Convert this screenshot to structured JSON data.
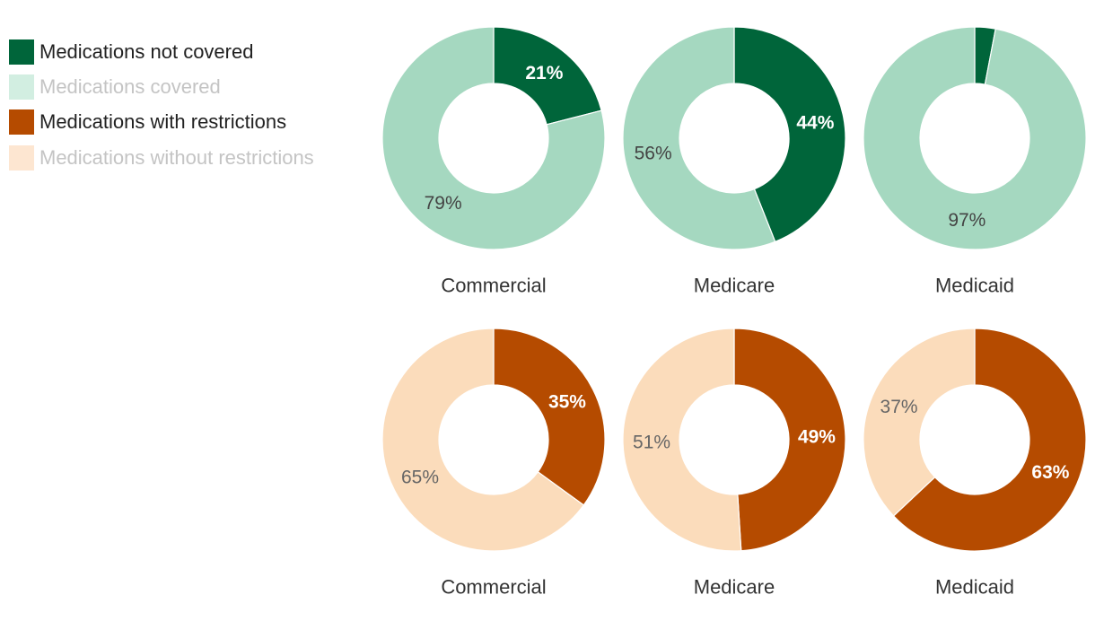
{
  "legend": {
    "items": [
      {
        "label": "Medications not covered",
        "color": "#00653a",
        "text_color": "#222222"
      },
      {
        "label": "Medications covered",
        "color": "#d2eee1",
        "text_color": "#c4c4c4"
      },
      {
        "label": "Medications with restrictions",
        "color": "#b54b00",
        "text_color": "#222222"
      },
      {
        "label": "Medications without restrictions",
        "color": "#fde6d1",
        "text_color": "#c4c4c4"
      }
    ]
  },
  "chart_data": [
    {
      "type": "pie",
      "subtype": "donut",
      "row": 0,
      "categories": [
        "Medications not covered",
        "Medications covered"
      ],
      "colors": [
        "#00653a",
        "#a5d8c0"
      ],
      "label_colors": [
        "#ffffff",
        "#444444"
      ],
      "label_bold": [
        true,
        false
      ],
      "charts": [
        {
          "title": "Commercial",
          "values": [
            21,
            79
          ],
          "labels": [
            "21%",
            "79%"
          ]
        },
        {
          "title": "Medicare",
          "values": [
            44,
            56
          ],
          "labels": [
            "44%",
            "56%"
          ]
        },
        {
          "title": "Medicaid",
          "values": [
            3,
            97
          ],
          "labels": [
            "",
            "97%"
          ]
        }
      ]
    },
    {
      "type": "pie",
      "subtype": "donut",
      "row": 1,
      "categories": [
        "Medications with restrictions",
        "Medications without restrictions"
      ],
      "colors": [
        "#b54b00",
        "#fbdcbb"
      ],
      "label_colors": [
        "#ffffff",
        "#666666"
      ],
      "label_bold": [
        true,
        false
      ],
      "charts": [
        {
          "title": "Commercial",
          "values": [
            35,
            65
          ],
          "labels": [
            "35%",
            "65%"
          ]
        },
        {
          "title": "Medicare",
          "values": [
            49,
            51
          ],
          "labels": [
            "49%",
            "51%"
          ]
        },
        {
          "title": "Medicaid",
          "values": [
            63,
            37
          ],
          "labels": [
            "63%",
            "37%"
          ]
        }
      ]
    }
  ]
}
